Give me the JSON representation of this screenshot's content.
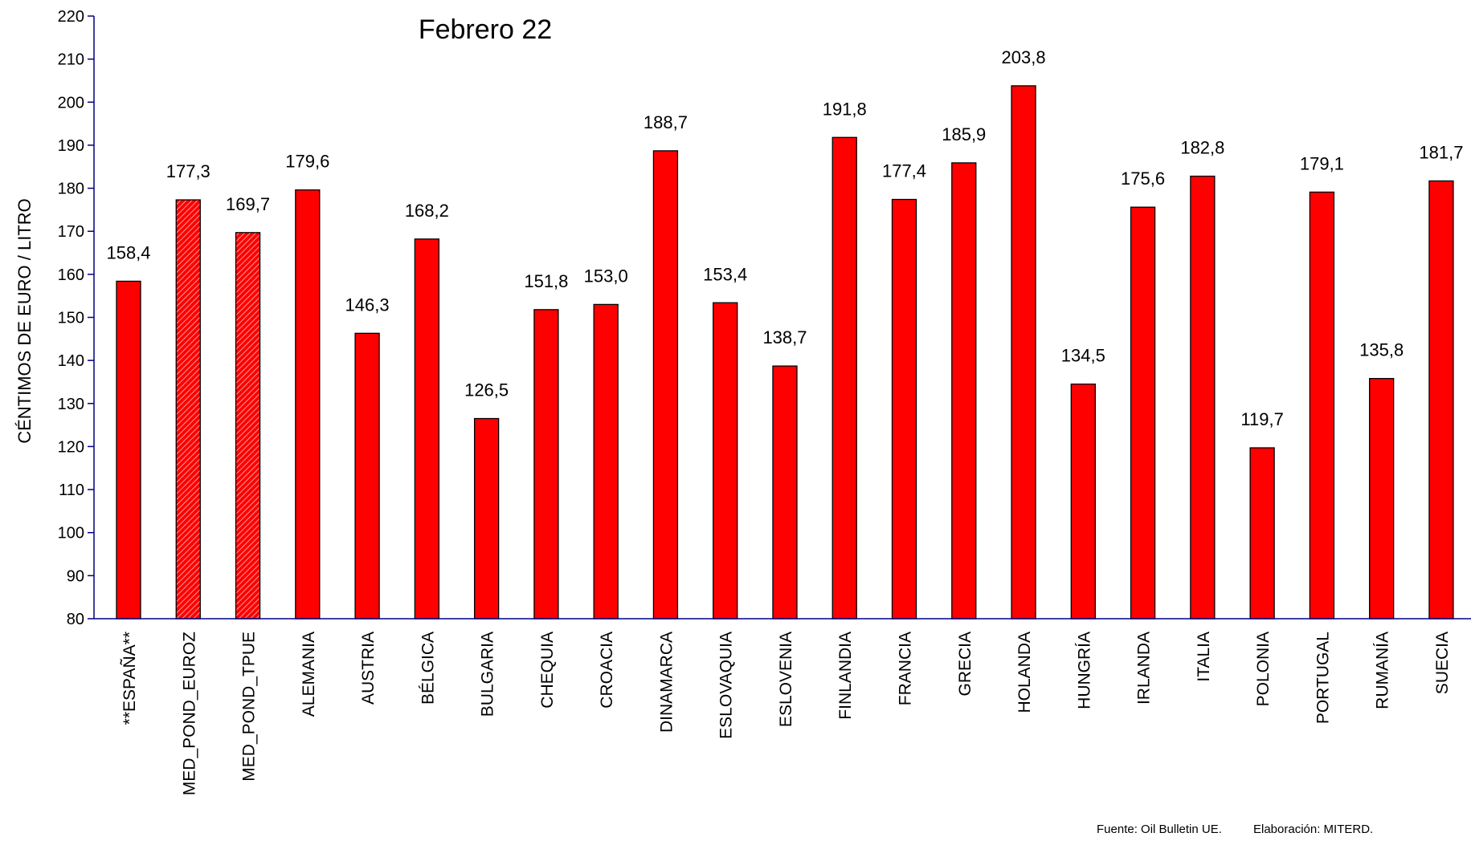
{
  "chart_data": {
    "type": "bar",
    "title": "Febrero 22",
    "y_label": "CÉNTIMOS DE EURO / LITRO",
    "categories": [
      "**ESPAÑA**",
      "MED_POND_EUROZ",
      "MED_POND_TPUE",
      "ALEMANIA",
      "AUSTRIA",
      "BÉLGICA",
      "BULGARIA",
      "CHEQUIA",
      "CROACIA",
      "DINAMARCA",
      "ESLOVAQUIA",
      "ESLOVENIA",
      "FINLANDIA",
      "FRANCIA",
      "GRECIA",
      "HOLANDA",
      "HUNGRÍA",
      "IRLANDA",
      "ITALIA",
      "POLONIA",
      "PORTUGAL",
      "RUMANÍA",
      "SUECIA"
    ],
    "values": [
      158.4,
      177.3,
      169.7,
      179.6,
      146.3,
      168.2,
      126.5,
      151.8,
      153.0,
      188.7,
      153.4,
      138.7,
      191.8,
      177.4,
      185.9,
      203.8,
      134.5,
      175.6,
      182.8,
      119.7,
      179.1,
      135.8,
      181.7
    ],
    "value_labels": [
      "158,4",
      "177,3",
      "169,7",
      "179,6",
      "146,3",
      "168,2",
      "126,5",
      "151,8",
      "153,0",
      "188,7",
      "153,4",
      "138,7",
      "191,8",
      "177,4",
      "185,9",
      "203,8",
      "134,5",
      "175,6",
      "182,8",
      "119,7",
      "179,1",
      "135,8",
      "181,7"
    ],
    "color": "#ff0000",
    "hatched": [
      false,
      true,
      true,
      false,
      false,
      false,
      false,
      false,
      false,
      false,
      false,
      false,
      false,
      false,
      false,
      false,
      false,
      false,
      false,
      false,
      false,
      false,
      false
    ],
    "hatch_color": "#ff6666",
    "ylim": [
      80,
      220
    ],
    "yticks": [
      80,
      90,
      100,
      110,
      120,
      130,
      140,
      150,
      160,
      170,
      180,
      190,
      200,
      210,
      220
    ],
    "source": "Fuente: Oil Bulletin UE.",
    "credit": "Elaboración: MITERD."
  }
}
